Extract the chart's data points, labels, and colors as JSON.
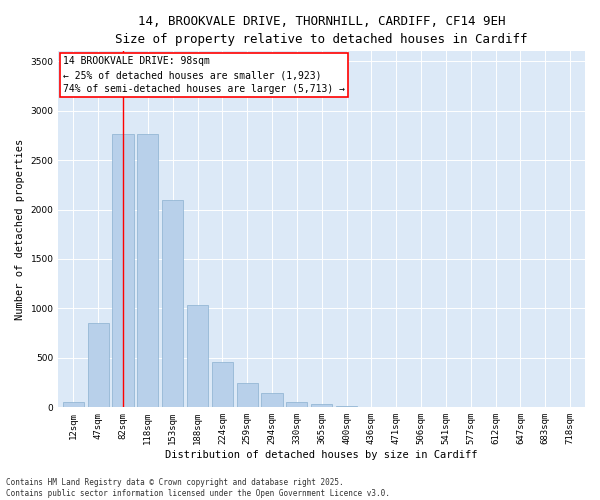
{
  "title_line1": "14, BROOKVALE DRIVE, THORNHILL, CARDIFF, CF14 9EH",
  "title_line2": "Size of property relative to detached houses in Cardiff",
  "xlabel": "Distribution of detached houses by size in Cardiff",
  "ylabel": "Number of detached properties",
  "categories": [
    "12sqm",
    "47sqm",
    "82sqm",
    "118sqm",
    "153sqm",
    "188sqm",
    "224sqm",
    "259sqm",
    "294sqm",
    "330sqm",
    "365sqm",
    "400sqm",
    "436sqm",
    "471sqm",
    "506sqm",
    "541sqm",
    "577sqm",
    "612sqm",
    "647sqm",
    "683sqm",
    "718sqm"
  ],
  "values": [
    55,
    850,
    2760,
    2760,
    2100,
    1030,
    455,
    245,
    150,
    58,
    32,
    18,
    5,
    5,
    4,
    2,
    2,
    1,
    1,
    1,
    0
  ],
  "bar_color": "#b8d0ea",
  "bar_edge_color": "#8ab0d0",
  "annotation_text_line1": "14 BROOKVALE DRIVE: 98sqm",
  "annotation_text_line2": "← 25% of detached houses are smaller (1,923)",
  "annotation_text_line3": "74% of semi-detached houses are larger (5,713) →",
  "annotation_box_color": "white",
  "annotation_box_edge_color": "red",
  "vline_color": "red",
  "vline_x_index": 2,
  "ylim": [
    0,
    3600
  ],
  "yticks": [
    0,
    500,
    1000,
    1500,
    2000,
    2500,
    3000,
    3500
  ],
  "background_color": "#dce9f7",
  "grid_color": "white",
  "footer_line1": "Contains HM Land Registry data © Crown copyright and database right 2025.",
  "footer_line2": "Contains public sector information licensed under the Open Government Licence v3.0.",
  "title_fontsize": 9,
  "subtitle_fontsize": 8,
  "axis_label_fontsize": 7.5,
  "tick_fontsize": 6.5,
  "annotation_fontsize": 7,
  "footer_fontsize": 5.5
}
